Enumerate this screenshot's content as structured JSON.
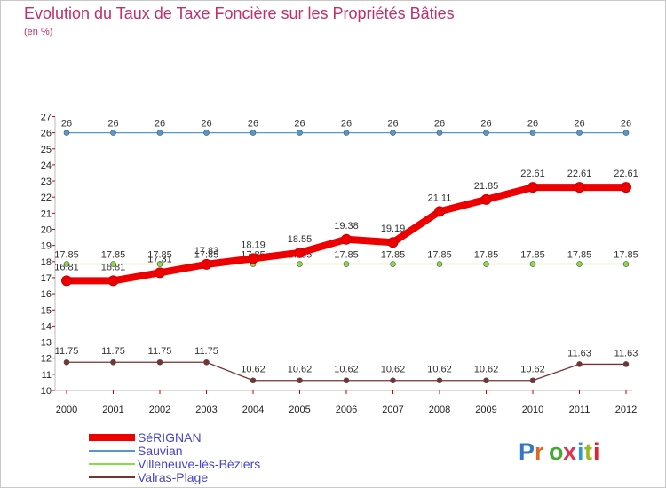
{
  "chart_data": {
    "type": "line",
    "title": "Evolution du Taux de Taxe Foncière sur les Propriétés Bâties",
    "subtitle": "(en %)",
    "xlabel": "",
    "ylabel": "",
    "categories": [
      "2000",
      "2001",
      "2002",
      "2003",
      "2004",
      "2005",
      "2006",
      "2007",
      "2008",
      "2009",
      "2010",
      "2011",
      "2012"
    ],
    "ylim": [
      10,
      27
    ],
    "yticks": [
      10,
      11,
      12,
      13,
      14,
      15,
      16,
      17,
      18,
      19,
      20,
      21,
      22,
      23,
      24,
      25,
      26,
      27
    ],
    "grid": false,
    "legend_position": "bottom-left",
    "series": [
      {
        "name": "SéRIGNAN",
        "color": "#ee0000",
        "width": "thick",
        "values": [
          16.81,
          16.81,
          17.31,
          17.83,
          18.19,
          18.55,
          19.38,
          19.19,
          21.11,
          21.85,
          22.61,
          22.61,
          22.61
        ],
        "labels": [
          "16.81",
          "16.81",
          "17.31",
          "17.83",
          "18.19",
          "18.55",
          "19.38",
          "19.19",
          "21.11",
          "21.85",
          "22.61",
          "22.61",
          "22.61"
        ]
      },
      {
        "name": "Sauvian",
        "color": "#5599cc",
        "width": "thin",
        "values": [
          26,
          26,
          26,
          26,
          26,
          26,
          26,
          26,
          26,
          26,
          26,
          26,
          26
        ],
        "labels": [
          "26",
          "26",
          "26",
          "26",
          "26",
          "26",
          "26",
          "26",
          "26",
          "26",
          "26",
          "26",
          "26"
        ]
      },
      {
        "name": "Villeneuve-lès-Béziers",
        "color": "#88dd44",
        "width": "thin",
        "values": [
          17.85,
          17.85,
          17.85,
          17.85,
          17.85,
          17.85,
          17.85,
          17.85,
          17.85,
          17.85,
          17.85,
          17.85,
          17.85
        ],
        "labels": [
          "17.85",
          "17.85",
          "17.85",
          "17.85",
          "17.85",
          "17.85",
          "17.85",
          "17.85",
          "17.85",
          "17.85",
          "17.85",
          "17.85",
          "17.85"
        ]
      },
      {
        "name": "Valras-Plage",
        "color": "#773333",
        "width": "thin",
        "values": [
          11.75,
          11.75,
          11.75,
          11.75,
          10.62,
          10.62,
          10.62,
          10.62,
          10.62,
          10.62,
          10.62,
          11.63,
          11.63
        ],
        "labels": [
          "11.75",
          "11.75",
          "11.75",
          "11.75",
          "10.62",
          "10.62",
          "10.62",
          "10.62",
          "10.62",
          "10.62",
          "10.62",
          "11.63",
          "11.63"
        ]
      }
    ]
  },
  "legend": {
    "label_color": "#4444cc"
  },
  "logo": {
    "text": "Proxiti"
  }
}
